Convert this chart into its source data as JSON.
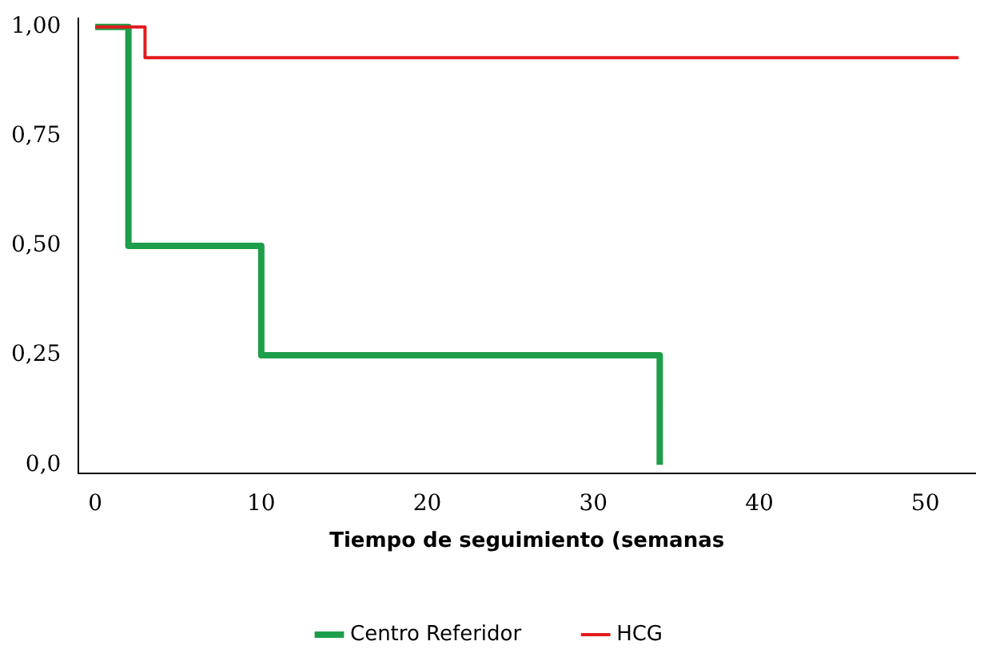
{
  "chart_data": {
    "type": "step",
    "xlabel": "Tiempo de seguimiento (semanas",
    "series": [
      {
        "name": "Centro Referidor",
        "color": "#1e9e4a",
        "x": [
          0,
          2,
          10,
          34,
          34
        ],
        "values": [
          1,
          0.5,
          0.25,
          0.25,
          0
        ]
      },
      {
        "name": "HCG",
        "color": "#e31a1c",
        "x": [
          0,
          3,
          52
        ],
        "values": [
          1,
          0.93,
          0.93
        ]
      }
    ],
    "xlim": [
      -1,
      53
    ],
    "xticks": [
      0,
      10,
      20,
      30,
      40,
      50
    ],
    "ylim": [
      -0.02,
      1.02
    ],
    "yticks": [
      {
        "value": 0,
        "label": "0,0"
      },
      {
        "value": 0.25,
        "label": "0,25"
      },
      {
        "value": 0.5,
        "label": "0,50"
      },
      {
        "value": 0.75,
        "label": "0,75"
      },
      {
        "value": 1,
        "label": "1,00"
      }
    ],
    "grid": false,
    "legend": "bottom",
    "marker": "none",
    "line_style": "solid"
  }
}
